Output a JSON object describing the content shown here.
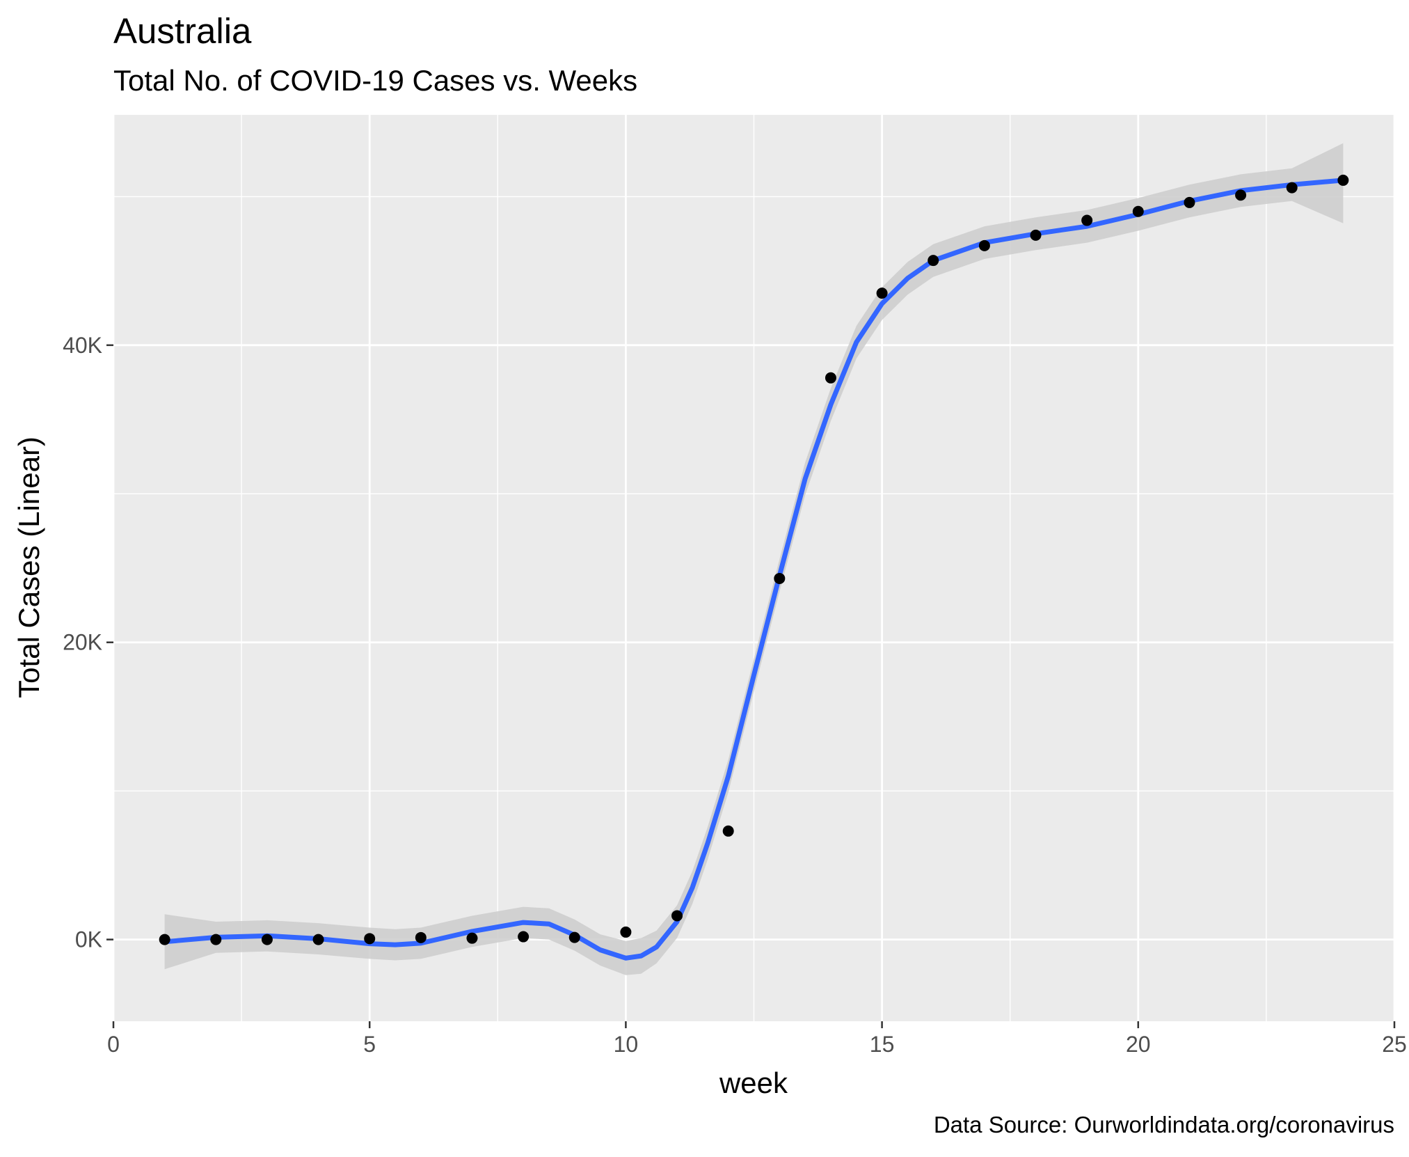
{
  "chart_data": {
    "type": "scatter",
    "title": "Australia",
    "subtitle": "Total No. of COVID-19 Cases vs. Weeks",
    "xlabel": "week",
    "ylabel": "Total Cases (Linear)",
    "caption": "Data Source: Ourworldindata.org/coronavirus",
    "xlim": [
      0,
      25
    ],
    "ylim": [
      -5500,
      55500
    ],
    "x_ticks": [
      0,
      5,
      10,
      15,
      20,
      25
    ],
    "y_ticks": [
      0,
      20000,
      40000
    ],
    "y_tick_labels": [
      "0K",
      "20K",
      "40K"
    ],
    "grid": true,
    "series": [
      {
        "type": "points",
        "x": [
          1,
          2,
          3,
          4,
          5,
          6,
          7,
          8,
          9,
          10,
          11,
          12,
          13,
          14,
          15,
          16,
          17,
          18,
          19,
          20,
          21,
          22,
          23,
          24
        ],
        "y": [
          0,
          0,
          0,
          0,
          60,
          130,
          90,
          190,
          140,
          500,
          1600,
          7300,
          24300,
          37800,
          43500,
          45700,
          46700,
          47400,
          48400,
          49000,
          49600,
          50100,
          50600,
          51100
        ]
      },
      {
        "type": "smooth",
        "color": "#3366ff",
        "x": [
          1,
          2,
          3,
          4,
          5,
          5.5,
          6,
          7,
          8,
          8.5,
          9,
          9.5,
          10,
          10.3,
          10.6,
          11,
          11.3,
          11.6,
          12,
          12.5,
          13,
          13.5,
          14,
          14.5,
          15,
          15.5,
          16,
          17,
          18,
          19,
          20,
          21,
          22,
          23,
          24
        ],
        "y": [
          -150,
          150,
          250,
          50,
          -280,
          -350,
          -250,
          550,
          1150,
          1050,
          300,
          -700,
          -1250,
          -1100,
          -500,
          1200,
          3500,
          6500,
          11000,
          17800,
          24500,
          31000,
          36000,
          40200,
          42800,
          44500,
          45700,
          46900,
          47500,
          48000,
          48800,
          49700,
          50400,
          50800,
          51100
        ]
      },
      {
        "type": "confidence_band",
        "color": "#cccccc",
        "x": [
          1,
          2,
          3,
          4,
          5,
          5.5,
          6,
          7,
          8,
          8.5,
          9,
          9.5,
          10,
          10.3,
          10.6,
          11,
          11.3,
          11.6,
          12,
          12.5,
          13,
          13.5,
          14,
          14.5,
          15,
          15.5,
          16,
          17,
          18,
          19,
          20,
          21,
          22,
          23,
          24
        ],
        "lower": [
          -2000,
          -900,
          -800,
          -1000,
          -1300,
          -1400,
          -1300,
          -500,
          100,
          0,
          -750,
          -1750,
          -2400,
          -2300,
          -1600,
          100,
          2400,
          5400,
          9900,
          16700,
          23400,
          29900,
          34900,
          39100,
          41700,
          43400,
          44600,
          45800,
          46400,
          46900,
          47700,
          48600,
          49300,
          49700,
          48200
        ],
        "upper": [
          1700,
          1200,
          1300,
          1100,
          800,
          700,
          800,
          1600,
          2200,
          2100,
          1350,
          350,
          -100,
          100,
          600,
          2300,
          4600,
          7600,
          12100,
          18900,
          25600,
          32100,
          37100,
          41300,
          43900,
          45600,
          46800,
          48000,
          48600,
          49100,
          49900,
          50800,
          51500,
          51900,
          53600
        ]
      }
    ]
  }
}
